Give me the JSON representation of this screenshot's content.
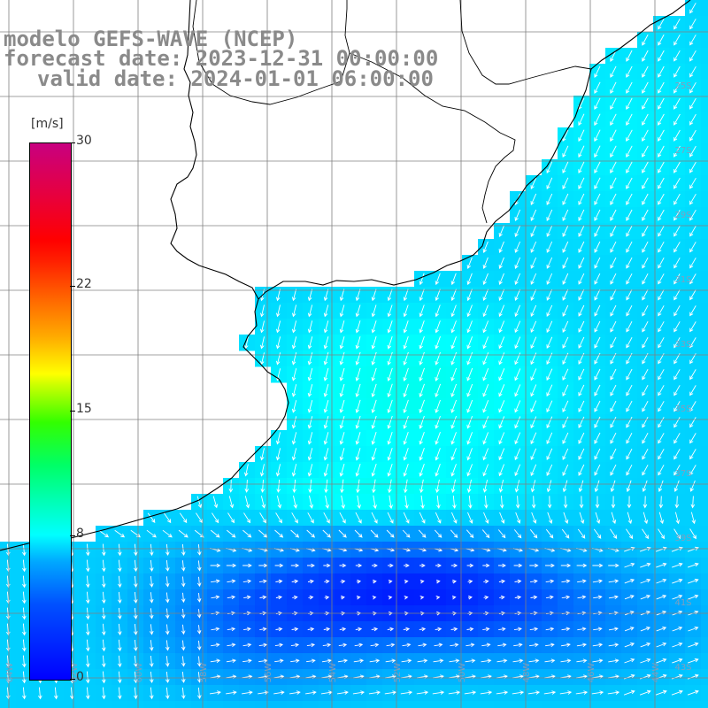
{
  "title": {
    "line1": "modelo GEFS-WAVE (NCEP)",
    "line2": "forecast date: 2023-12-31 00:00:00",
    "line3": "valid date: 2024-01-01 06:00:00"
  },
  "legend": {
    "unit": "[m/s]",
    "ticks": [
      {
        "label": "30",
        "value": 30
      },
      {
        "label": "22",
        "value": 22
      },
      {
        "label": "15",
        "value": 15
      },
      {
        "label": "8",
        "value": 8
      },
      {
        "label": "0",
        "value": 0
      }
    ],
    "range": [
      0,
      30
    ],
    "colors": [
      "#0000ff",
      "#00a8ff",
      "#00ffff",
      "#33ff00",
      "#ffff00",
      "#ff6600",
      "#ff0000",
      "#c80080"
    ]
  },
  "axes": {
    "lat_labels": [
      "25S",
      "27S",
      "29S",
      "31S",
      "33S",
      "35S",
      "37S",
      "39S",
      "41S",
      "43S"
    ],
    "lon_labels": [
      "64W",
      "62W",
      "60W",
      "58W",
      "56W",
      "54W",
      "52W",
      "50W",
      "48W",
      "46W",
      "44W"
    ]
  },
  "colors": {
    "land": "#ffffff",
    "coast": "#000000",
    "grid": "#808080",
    "arrows": "#ffffff"
  }
}
